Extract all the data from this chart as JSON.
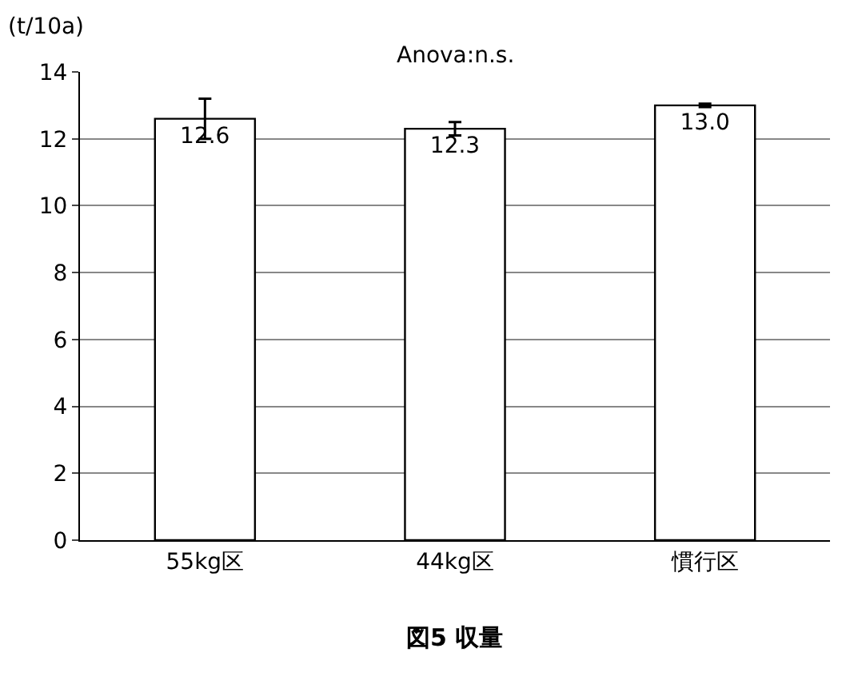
{
  "chart_data": {
    "type": "bar",
    "ylabel": "(t/10a)",
    "categories": [
      "55kg区",
      "44kg区",
      "慣行区"
    ],
    "series": [
      {
        "color": "#ffffff",
        "values": [
          12.6,
          12.3,
          13.0
        ],
        "errors": [
          0.6,
          0.2,
          0.05
        ],
        "value_labels": [
          "12.6",
          "12.3",
          "13.0"
        ]
      }
    ],
    "ylim": [
      0,
      14
    ],
    "yticks": [
      0,
      2,
      4,
      6,
      8,
      10,
      12,
      14
    ],
    "grid": "y",
    "annotations": [
      "Anova:n.s.",
      "図5 収量"
    ]
  }
}
